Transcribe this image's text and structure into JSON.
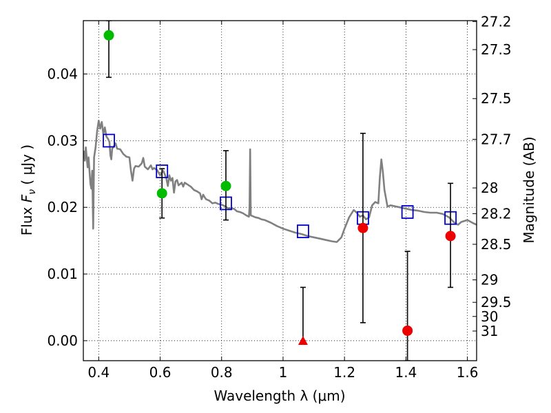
{
  "chart_data": {
    "type": "scatter",
    "xlabel": "Wavelength  λ (μm)",
    "ylabel": "Flux  F_ν  ( μJy )",
    "ylabel_parts": {
      "prefix": "Flux  ",
      "symbol": "F",
      "sub": "ν",
      "suffix": "  ( μJy )"
    },
    "y2label": "Magnitude (AB)",
    "xlim": [
      0.35,
      1.63
    ],
    "ylim": [
      -0.003,
      0.048
    ],
    "grid": true,
    "x_ticks": [
      0.4,
      0.6,
      0.8,
      1.0,
      1.2,
      1.4,
      1.6
    ],
    "x_tick_labels": [
      "0.4",
      "0.6",
      "0.8",
      "1",
      "1.2",
      "1.4",
      "1.6"
    ],
    "y_ticks": [
      0.0,
      0.01,
      0.02,
      0.03,
      0.04
    ],
    "y_tick_labels": [
      "0.00",
      "0.01",
      "0.02",
      "0.03",
      "0.04"
    ],
    "magnitude_ticks": [
      "27.2",
      "27.3",
      "27.5",
      "27.7",
      "28",
      "28.2",
      "28.5",
      "29",
      "29.5",
      "30",
      "31"
    ],
    "model_spectrum": {
      "color": "#808080",
      "points": [
        [
          0.352,
          0.0285
        ],
        [
          0.355,
          0.027
        ],
        [
          0.358,
          0.029
        ],
        [
          0.361,
          0.0275
        ],
        [
          0.364,
          0.026
        ],
        [
          0.367,
          0.0275
        ],
        [
          0.37,
          0.0255
        ],
        [
          0.373,
          0.0235
        ],
        [
          0.376,
          0.0228
        ],
        [
          0.379,
          0.0255
        ],
        [
          0.382,
          0.0168
        ],
        [
          0.385,
          0.0275
        ],
        [
          0.39,
          0.029
        ],
        [
          0.395,
          0.0315
        ],
        [
          0.4,
          0.033
        ],
        [
          0.405,
          0.0318
        ],
        [
          0.41,
          0.0328
        ],
        [
          0.415,
          0.031
        ],
        [
          0.42,
          0.032
        ],
        [
          0.425,
          0.0306
        ],
        [
          0.43,
          0.0303
        ],
        [
          0.435,
          0.0298
        ],
        [
          0.438,
          0.0278
        ],
        [
          0.441,
          0.0272
        ],
        [
          0.444,
          0.0288
        ],
        [
          0.45,
          0.0292
        ],
        [
          0.455,
          0.0296
        ],
        [
          0.46,
          0.0288
        ],
        [
          0.47,
          0.0287
        ],
        [
          0.48,
          0.028
        ],
        [
          0.49,
          0.0276
        ],
        [
          0.5,
          0.0275
        ],
        [
          0.505,
          0.0255
        ],
        [
          0.51,
          0.024
        ],
        [
          0.515,
          0.0258
        ],
        [
          0.52,
          0.0262
        ],
        [
          0.53,
          0.0261
        ],
        [
          0.54,
          0.0266
        ],
        [
          0.545,
          0.0274
        ],
        [
          0.55,
          0.0261
        ],
        [
          0.56,
          0.0257
        ],
        [
          0.57,
          0.0263
        ],
        [
          0.575,
          0.0257
        ],
        [
          0.58,
          0.0259
        ],
        [
          0.59,
          0.0256
        ],
        [
          0.6,
          0.0248
        ],
        [
          0.61,
          0.0255
        ],
        [
          0.62,
          0.0244
        ],
        [
          0.625,
          0.0232
        ],
        [
          0.63,
          0.0248
        ],
        [
          0.635,
          0.024
        ],
        [
          0.64,
          0.0244
        ],
        [
          0.645,
          0.0222
        ],
        [
          0.65,
          0.0239
        ],
        [
          0.655,
          0.0241
        ],
        [
          0.66,
          0.0233
        ],
        [
          0.67,
          0.0237
        ],
        [
          0.675,
          0.0231
        ],
        [
          0.68,
          0.0237
        ],
        [
          0.69,
          0.0234
        ],
        [
          0.7,
          0.0231
        ],
        [
          0.71,
          0.0226
        ],
        [
          0.72,
          0.0224
        ],
        [
          0.73,
          0.0221
        ],
        [
          0.735,
          0.0212
        ],
        [
          0.74,
          0.0219
        ],
        [
          0.745,
          0.0215
        ],
        [
          0.75,
          0.0212
        ],
        [
          0.76,
          0.021
        ],
        [
          0.77,
          0.0206
        ],
        [
          0.78,
          0.0207
        ],
        [
          0.79,
          0.0205
        ],
        [
          0.8,
          0.0204
        ],
        [
          0.81,
          0.0202
        ],
        [
          0.82,
          0.0199
        ],
        [
          0.83,
          0.0198
        ],
        [
          0.84,
          0.0198
        ],
        [
          0.85,
          0.0194
        ],
        [
          0.86,
          0.0193
        ],
        [
          0.87,
          0.0191
        ],
        [
          0.88,
          0.0188
        ],
        [
          0.889,
          0.0186
        ],
        [
          0.891,
          0.02
        ],
        [
          0.893,
          0.0287
        ],
        [
          0.895,
          0.0188
        ],
        [
          0.9,
          0.0187
        ],
        [
          0.91,
          0.0185
        ],
        [
          0.92,
          0.0184
        ],
        [
          0.93,
          0.0182
        ],
        [
          0.94,
          0.0181
        ],
        [
          0.96,
          0.0177
        ],
        [
          0.98,
          0.0172
        ],
        [
          1.0,
          0.0168
        ],
        [
          1.02,
          0.0165
        ],
        [
          1.04,
          0.0162
        ],
        [
          1.06,
          0.016
        ],
        [
          1.08,
          0.0157
        ],
        [
          1.1,
          0.0155
        ],
        [
          1.12,
          0.0153
        ],
        [
          1.14,
          0.0151
        ],
        [
          1.16,
          0.0149
        ],
        [
          1.175,
          0.0148
        ],
        [
          1.19,
          0.0155
        ],
        [
          1.2,
          0.0168
        ],
        [
          1.215,
          0.0185
        ],
        [
          1.23,
          0.0196
        ],
        [
          1.24,
          0.0192
        ],
        [
          1.25,
          0.0186
        ],
        [
          1.26,
          0.0188
        ],
        [
          1.27,
          0.0182
        ],
        [
          1.28,
          0.0185
        ],
        [
          1.29,
          0.0203
        ],
        [
          1.3,
          0.0208
        ],
        [
          1.31,
          0.0206
        ],
        [
          1.315,
          0.0245
        ],
        [
          1.32,
          0.0272
        ],
        [
          1.325,
          0.0253
        ],
        [
          1.33,
          0.0226
        ],
        [
          1.34,
          0.0201
        ],
        [
          1.35,
          0.0203
        ],
        [
          1.36,
          0.0202
        ],
        [
          1.38,
          0.02
        ],
        [
          1.4,
          0.0198
        ],
        [
          1.42,
          0.0196
        ],
        [
          1.44,
          0.0195
        ],
        [
          1.46,
          0.0193
        ],
        [
          1.48,
          0.0192
        ],
        [
          1.5,
          0.0192
        ],
        [
          1.52,
          0.019
        ],
        [
          1.54,
          0.0185
        ],
        [
          1.56,
          0.0176
        ],
        [
          1.57,
          0.0174
        ],
        [
          1.58,
          0.0178
        ],
        [
          1.6,
          0.0181
        ],
        [
          1.62,
          0.0176
        ],
        [
          1.63,
          0.0174
        ]
      ]
    },
    "series": [
      {
        "kind": "open-squares",
        "color": "#0000cc",
        "points": [
          {
            "x": 0.433,
            "y": 0.03
          },
          {
            "x": 0.606,
            "y": 0.0254
          },
          {
            "x": 0.814,
            "y": 0.0206
          },
          {
            "x": 1.065,
            "y": 0.0164
          },
          {
            "x": 1.26,
            "y": 0.0184
          },
          {
            "x": 1.405,
            "y": 0.0193
          },
          {
            "x": 1.545,
            "y": 0.0184
          }
        ]
      },
      {
        "kind": "filled-circles",
        "color": "#00bb00",
        "points": [
          {
            "x": 0.433,
            "y": 0.0458,
            "err_low": 0.0395,
            "err_high": 0.048
          },
          {
            "x": 0.606,
            "y": 0.0221,
            "err_low": 0.0184,
            "err_high": 0.0258
          },
          {
            "x": 0.814,
            "y": 0.0232,
            "err_low": 0.0181,
            "err_high": 0.0285
          }
        ]
      },
      {
        "kind": "filled-circles",
        "color": "#ee0000",
        "points": [
          {
            "x": 1.26,
            "y": 0.0169,
            "err_low": 0.0027,
            "err_high": 0.0311
          },
          {
            "x": 1.405,
            "y": 0.0015,
            "err_low": -0.003,
            "err_high": 0.0134
          },
          {
            "x": 1.545,
            "y": 0.0157,
            "err_low": 0.008,
            "err_high": 0.0236
          }
        ]
      },
      {
        "kind": "filled-triangles",
        "color": "#ee0000",
        "points": [
          {
            "x": 1.065,
            "y": 0.0,
            "err_low": 0.0,
            "err_high": 0.008
          }
        ]
      }
    ]
  }
}
